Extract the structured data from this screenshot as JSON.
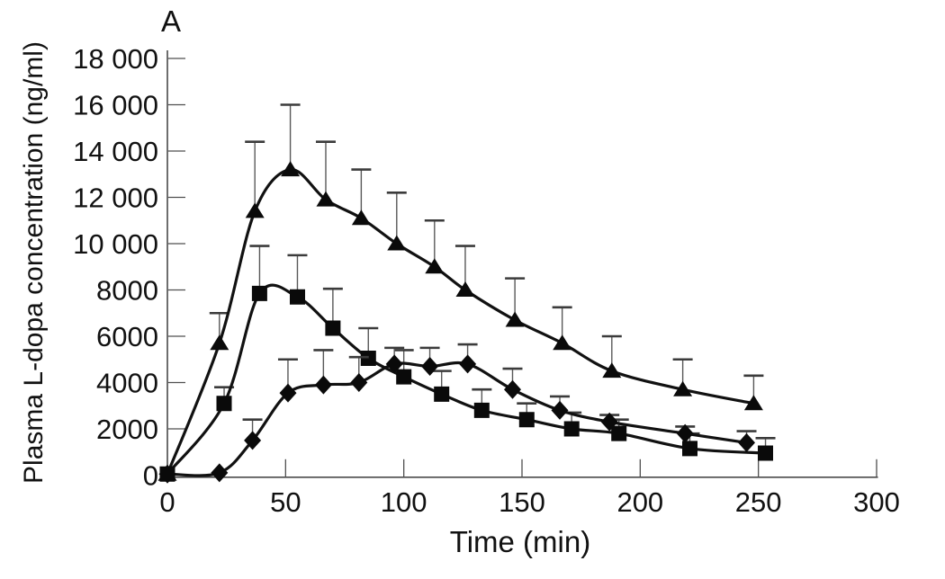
{
  "chart_data": {
    "type": "line",
    "panel_label": "A",
    "title": "",
    "xlabel": "Time (min)",
    "ylabel": "Plasma L-dopa concentration (ng/ml)",
    "xlim": [
      0,
      300
    ],
    "ylim": [
      0,
      18000
    ],
    "grid": false,
    "legend": false,
    "error_bars": "upper_only",
    "x_ticks": [
      {
        "v": 0,
        "label": "0"
      },
      {
        "v": 50,
        "label": "50"
      },
      {
        "v": 100,
        "label": "100"
      },
      {
        "v": 150,
        "label": "150"
      },
      {
        "v": 200,
        "label": "200"
      },
      {
        "v": 250,
        "label": "250"
      },
      {
        "v": 300,
        "label": "300"
      }
    ],
    "y_ticks": [
      {
        "v": 0,
        "label": "0"
      },
      {
        "v": 2000,
        "label": "2000"
      },
      {
        "v": 4000,
        "label": "4000"
      },
      {
        "v": 6000,
        "label": "6000"
      },
      {
        "v": 8000,
        "label": "8000"
      },
      {
        "v": 10000,
        "label": "10 000"
      },
      {
        "v": 12000,
        "label": "12 000"
      },
      {
        "v": 14000,
        "label": "14 000"
      },
      {
        "v": 16000,
        "label": "16 000"
      },
      {
        "v": 18000,
        "label": "18 000"
      }
    ],
    "colors": {
      "line": "#111111",
      "marker": "#0a0a0a",
      "error_line": "#585858",
      "error_cap": "#3b3b3b",
      "axis": "#4a4a4a",
      "tick": "#4f4f4f",
      "text": "#111111",
      "background": "#ffffff"
    },
    "series": [
      {
        "name": "series-triangle",
        "marker": "triangle",
        "x": [
          0,
          22,
          37,
          52,
          67,
          82,
          97,
          113,
          126,
          147,
          167,
          188,
          218,
          248
        ],
        "y": [
          50,
          5700,
          11400,
          13200,
          11900,
          11100,
          10000,
          9000,
          8000,
          6700,
          5700,
          4500,
          3700,
          3100
        ],
        "err_top": [
          null,
          7000,
          14400,
          16000,
          14400,
          13200,
          12200,
          11000,
          9900,
          8500,
          7250,
          6000,
          5000,
          4300
        ]
      },
      {
        "name": "series-square",
        "marker": "square",
        "x": [
          0,
          24,
          39,
          55,
          70,
          85,
          100,
          116,
          133,
          152,
          171,
          191,
          221,
          253
        ],
        "y": [
          50,
          3100,
          7850,
          7700,
          6350,
          5050,
          4250,
          3500,
          2800,
          2400,
          2000,
          1800,
          1150,
          950
        ],
        "err_top": [
          null,
          3800,
          9900,
          9500,
          8050,
          6350,
          5400,
          4500,
          3700,
          3100,
          2700,
          2400,
          1800,
          1600
        ]
      },
      {
        "name": "series-diamond",
        "marker": "diamond",
        "x": [
          0,
          22,
          36,
          51,
          66,
          81,
          96,
          111,
          127,
          146,
          166,
          187,
          219,
          245
        ],
        "y": [
          50,
          100,
          1500,
          3550,
          3900,
          4000,
          4800,
          4700,
          4800,
          3700,
          2800,
          2300,
          1800,
          1400
        ],
        "err_top": [
          null,
          null,
          2400,
          5000,
          5400,
          5100,
          5500,
          5500,
          5650,
          4600,
          3400,
          2600,
          2100,
          1900
        ]
      }
    ]
  }
}
